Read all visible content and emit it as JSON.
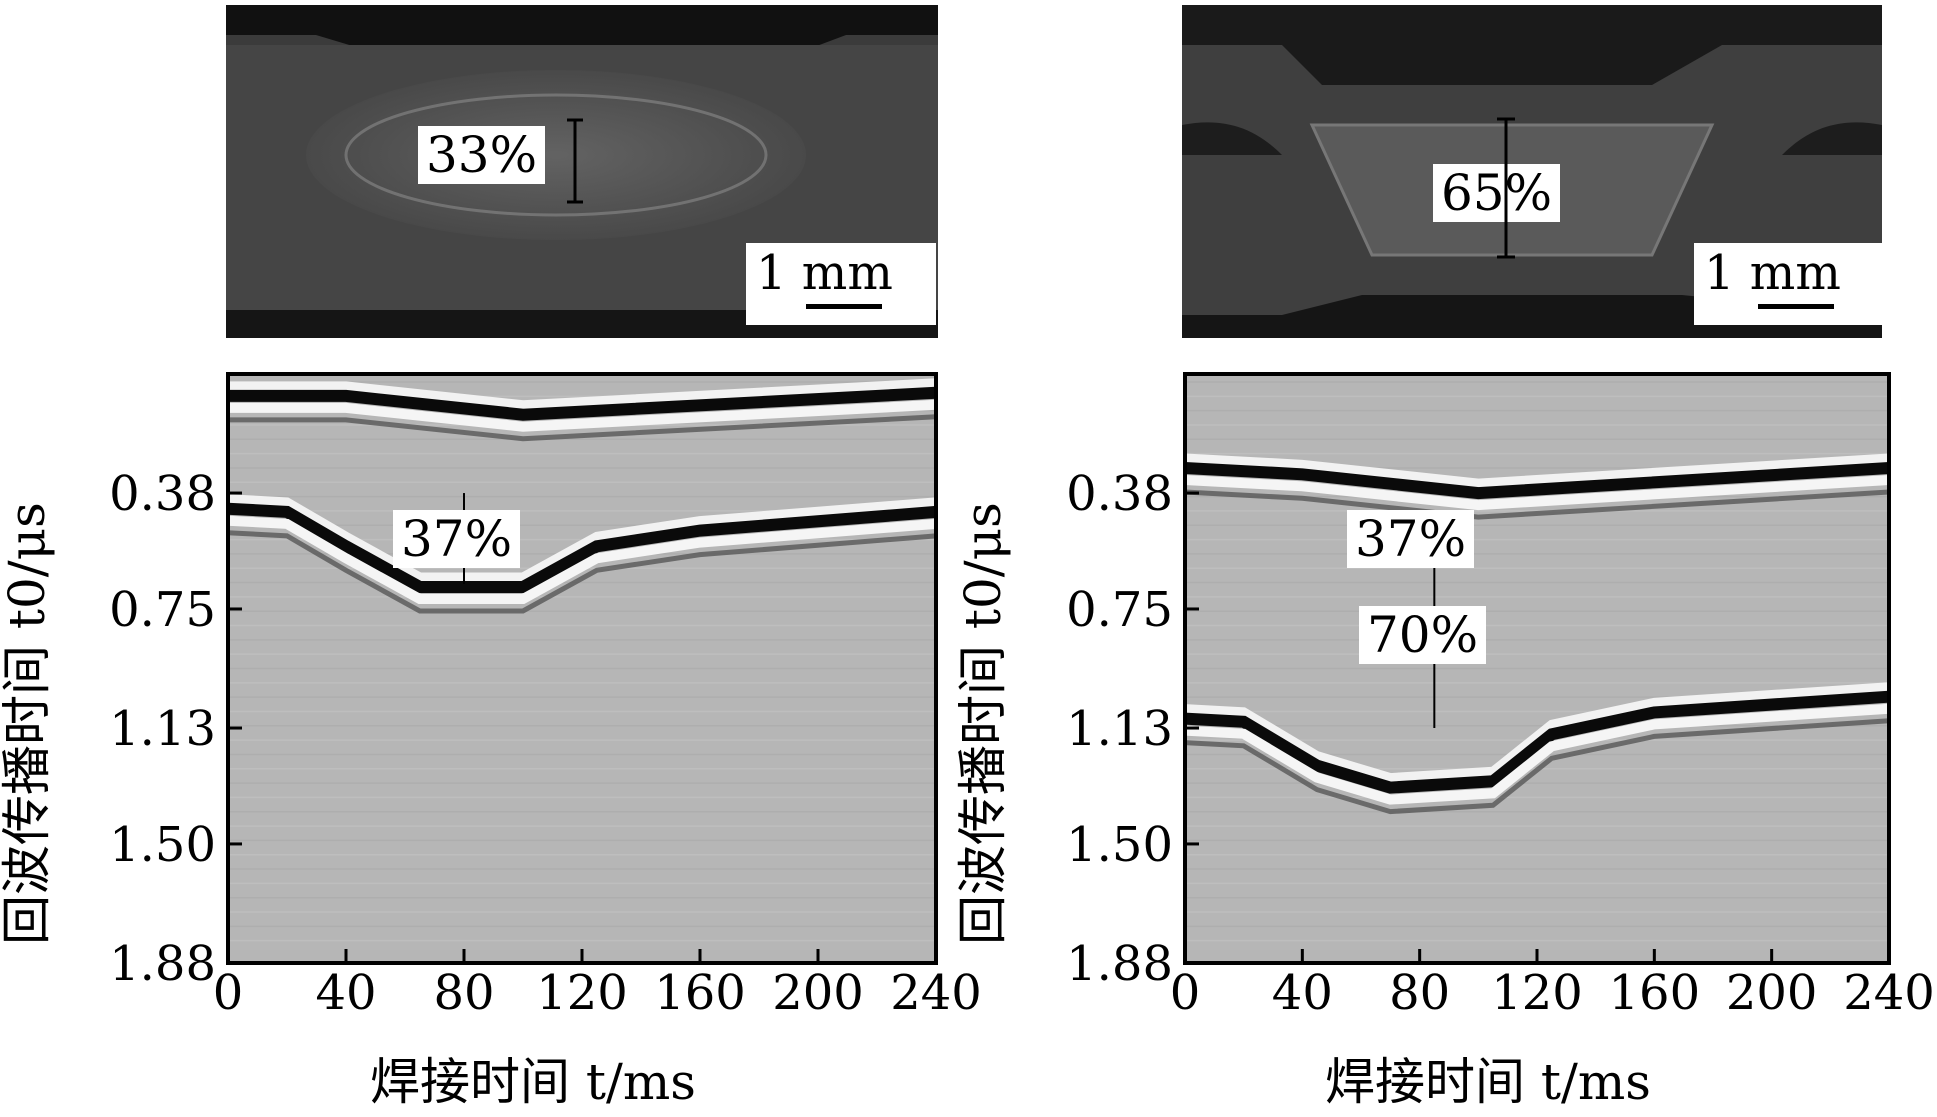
{
  "photos": [
    {
      "percent": "33%",
      "scale": "1 mm"
    },
    {
      "percent": "65%",
      "scale": "1 mm"
    }
  ],
  "chart_data": [
    {
      "type": "heatmap",
      "xlabel": "焊接时间 t/ms",
      "ylabel": "回波传播时间 t0/μs",
      "x_ticks": [
        "0",
        "40",
        "80",
        "120",
        "160",
        "200",
        "240"
      ],
      "y_ticks": [
        "0.38",
        "0.75",
        "1.13",
        "1.50",
        "1.88"
      ],
      "xlim": [
        0,
        240
      ],
      "ylim": [
        1.88,
        0.0
      ],
      "y_tick_values": [
        0.38,
        0.75,
        1.13,
        1.5,
        1.88
      ],
      "annotations": [
        {
          "text": "37%",
          "x": 80,
          "y_from": 0.38,
          "y_to": 0.67
        }
      ],
      "top_interface": [
        [
          0,
          0.07
        ],
        [
          40,
          0.07
        ],
        [
          100,
          0.13
        ],
        [
          240,
          0.06
        ]
      ],
      "bottom_interface": [
        [
          0,
          0.43
        ],
        [
          20,
          0.44
        ],
        [
          40,
          0.55
        ],
        [
          65,
          0.68
        ],
        [
          100,
          0.68
        ],
        [
          125,
          0.55
        ],
        [
          160,
          0.5
        ],
        [
          240,
          0.44
        ]
      ]
    },
    {
      "type": "heatmap",
      "xlabel": "焊接时间 t/ms",
      "ylabel": "回波传播时间 t0/μs",
      "x_ticks": [
        "0",
        "40",
        "80",
        "120",
        "160",
        "200",
        "240"
      ],
      "y_ticks": [
        "0.38",
        "0.75",
        "1.13",
        "1.50",
        "1.88"
      ],
      "xlim": [
        0,
        240
      ],
      "ylim": [
        1.88,
        0.0
      ],
      "y_tick_values": [
        0.38,
        0.75,
        1.13,
        1.5,
        1.88
      ],
      "annotations": [
        {
          "text": "37%",
          "x": 85,
          "y_from": null,
          "y_to": null
        },
        {
          "text": "70%",
          "x": 85,
          "y_from": 0.58,
          "y_to": 1.13
        }
      ],
      "top_interface": [
        [
          0,
          0.3
        ],
        [
          40,
          0.32
        ],
        [
          100,
          0.38
        ],
        [
          240,
          0.3
        ]
      ],
      "bottom_interface": [
        [
          0,
          1.1
        ],
        [
          20,
          1.11
        ],
        [
          45,
          1.25
        ],
        [
          70,
          1.32
        ],
        [
          105,
          1.3
        ],
        [
          125,
          1.15
        ],
        [
          160,
          1.08
        ],
        [
          240,
          1.03
        ]
      ]
    }
  ]
}
